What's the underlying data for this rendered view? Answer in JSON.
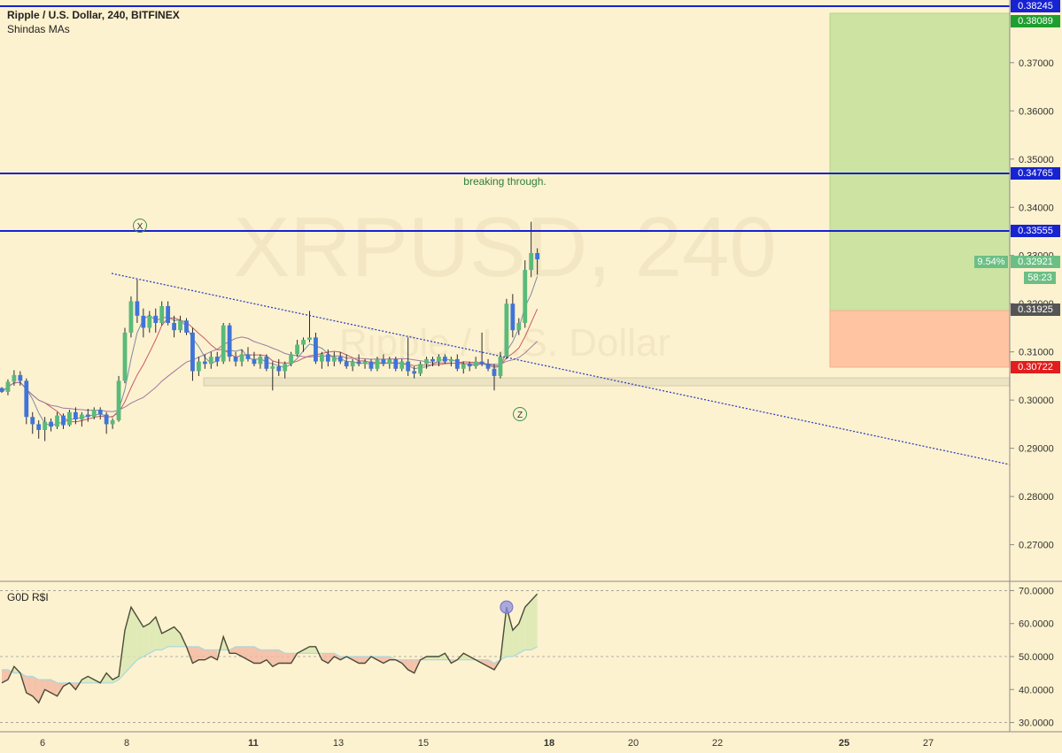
{
  "header": {
    "symbol": "Ripple / U.S. Dollar, 240, BITFINEX",
    "indicator": "Shindas MAs"
  },
  "watermark": {
    "line1": "XRPUSD, 240",
    "line2": "Ripple / U.S. Dollar"
  },
  "rsi_panel": {
    "title": "G0D R$I"
  },
  "annotations": {
    "breaking": "breaking through.",
    "wave_x": "X",
    "wave_z": "Z"
  },
  "price_tags": {
    "top_line": "0.38245",
    "target": "0.38089",
    "mid_line": "0.34765",
    "low_line": "0.33555",
    "percent": "9.54%",
    "current": "0.32921",
    "countdown": "58:23",
    "entry": "0.31925",
    "stop": "0.30722"
  },
  "colors": {
    "bull": "#5aba7a",
    "bear": "#3f74d9",
    "hline": "#1722d1",
    "profit": "#cde3a2",
    "loss": "#ffc4a2",
    "rsi_line": "#4a4a3a",
    "rsi_signal": "#a8d8e0"
  },
  "chart_data": [
    {
      "type": "candlestick",
      "title": "Ripple / U.S. Dollar, 240, BITFINEX",
      "y_ticks": [
        0.27,
        0.28,
        0.29,
        0.3,
        0.31,
        0.32,
        0.33,
        0.34,
        0.35,
        0.36,
        0.37
      ],
      "x_ticks": [
        "6",
        "8",
        "11",
        "13",
        "15",
        "18",
        "20",
        "22",
        "25",
        "27"
      ],
      "ylim": [
        0.2635,
        0.383
      ],
      "horizontal_lines": [
        0.38245,
        0.34765,
        0.33555
      ],
      "position": {
        "entry": 0.31925,
        "target": 0.38089,
        "stop": 0.30722
      },
      "ohlc": [
        [
          0.3025,
          0.3027,
          0.3015,
          0.3017
        ],
        [
          0.3017,
          0.3043,
          0.301,
          0.3038
        ],
        [
          0.3038,
          0.3062,
          0.303,
          0.3052
        ],
        [
          0.3052,
          0.306,
          0.303,
          0.304
        ],
        [
          0.304,
          0.3045,
          0.295,
          0.2965
        ],
        [
          0.2965,
          0.2975,
          0.293,
          0.295
        ],
        [
          0.295,
          0.2958,
          0.292,
          0.2938
        ],
        [
          0.2938,
          0.2965,
          0.2915,
          0.2955
        ],
        [
          0.2955,
          0.2962,
          0.2935,
          0.2945
        ],
        [
          0.2945,
          0.2975,
          0.294,
          0.2968
        ],
        [
          0.2968,
          0.2972,
          0.294,
          0.2948
        ],
        [
          0.2948,
          0.298,
          0.2945,
          0.2975
        ],
        [
          0.2975,
          0.2985,
          0.295,
          0.296
        ],
        [
          0.296,
          0.2975,
          0.2945,
          0.297
        ],
        [
          0.297,
          0.2982,
          0.2955,
          0.2965
        ],
        [
          0.2965,
          0.2985,
          0.296,
          0.298
        ],
        [
          0.298,
          0.2985,
          0.296,
          0.297
        ],
        [
          0.297,
          0.2975,
          0.293,
          0.295
        ],
        [
          0.295,
          0.2962,
          0.294,
          0.2958
        ],
        [
          0.2958,
          0.305,
          0.2955,
          0.304
        ],
        [
          0.304,
          0.315,
          0.3035,
          0.314
        ],
        [
          0.314,
          0.3215,
          0.313,
          0.3205
        ],
        [
          0.3205,
          0.325,
          0.316,
          0.3175
        ],
        [
          0.3175,
          0.319,
          0.313,
          0.315
        ],
        [
          0.315,
          0.3185,
          0.314,
          0.3175
        ],
        [
          0.3175,
          0.319,
          0.314,
          0.316
        ],
        [
          0.316,
          0.3205,
          0.3155,
          0.3195
        ],
        [
          0.3195,
          0.3205,
          0.3155,
          0.316
        ],
        [
          0.316,
          0.3175,
          0.313,
          0.3145
        ],
        [
          0.3145,
          0.3175,
          0.314,
          0.3165
        ],
        [
          0.3165,
          0.317,
          0.3135,
          0.314
        ],
        [
          0.314,
          0.315,
          0.304,
          0.306
        ],
        [
          0.306,
          0.309,
          0.305,
          0.308
        ],
        [
          0.308,
          0.3095,
          0.3065,
          0.3075
        ],
        [
          0.3075,
          0.31,
          0.3065,
          0.309
        ],
        [
          0.309,
          0.31,
          0.307,
          0.308
        ],
        [
          0.308,
          0.316,
          0.3075,
          0.3155
        ],
        [
          0.3155,
          0.316,
          0.308,
          0.309
        ],
        [
          0.309,
          0.31,
          0.307,
          0.308
        ],
        [
          0.308,
          0.3105,
          0.307,
          0.3095
        ],
        [
          0.3095,
          0.311,
          0.308,
          0.3085
        ],
        [
          0.3085,
          0.31,
          0.307,
          0.3075
        ],
        [
          0.3075,
          0.3095,
          0.3065,
          0.309
        ],
        [
          0.309,
          0.3095,
          0.306,
          0.3065
        ],
        [
          0.3065,
          0.308,
          0.302,
          0.307
        ],
        [
          0.307,
          0.3085,
          0.305,
          0.306
        ],
        [
          0.306,
          0.308,
          0.3045,
          0.3075
        ],
        [
          0.3075,
          0.31,
          0.307,
          0.3095
        ],
        [
          0.3095,
          0.3125,
          0.309,
          0.3115
        ],
        [
          0.3115,
          0.313,
          0.31,
          0.3125
        ],
        [
          0.3125,
          0.3185,
          0.312,
          0.313
        ],
        [
          0.313,
          0.314,
          0.3075,
          0.308
        ],
        [
          0.308,
          0.31,
          0.3065,
          0.3095
        ],
        [
          0.3095,
          0.3105,
          0.307,
          0.308
        ],
        [
          0.308,
          0.31,
          0.307,
          0.309
        ],
        [
          0.309,
          0.31,
          0.3075,
          0.308
        ],
        [
          0.308,
          0.3095,
          0.3065,
          0.307
        ],
        [
          0.307,
          0.3085,
          0.306,
          0.308
        ],
        [
          0.308,
          0.3095,
          0.307,
          0.3075
        ],
        [
          0.3075,
          0.3085,
          0.3065,
          0.308
        ],
        [
          0.308,
          0.3085,
          0.306,
          0.3065
        ],
        [
          0.3065,
          0.309,
          0.306,
          0.3085
        ],
        [
          0.3085,
          0.3095,
          0.307,
          0.3075
        ],
        [
          0.3075,
          0.309,
          0.3065,
          0.3085
        ],
        [
          0.3085,
          0.309,
          0.306,
          0.3065
        ],
        [
          0.3065,
          0.3085,
          0.306,
          0.308
        ],
        [
          0.308,
          0.313,
          0.305,
          0.306
        ],
        [
          0.306,
          0.307,
          0.3045,
          0.3055
        ],
        [
          0.3055,
          0.308,
          0.305,
          0.3075
        ],
        [
          0.3075,
          0.309,
          0.3065,
          0.3085
        ],
        [
          0.3085,
          0.309,
          0.307,
          0.308
        ],
        [
          0.308,
          0.3095,
          0.307,
          0.309
        ],
        [
          0.309,
          0.3095,
          0.3075,
          0.308
        ],
        [
          0.308,
          0.309,
          0.307,
          0.3085
        ],
        [
          0.3085,
          0.3095,
          0.306,
          0.3065
        ],
        [
          0.3065,
          0.308,
          0.3055,
          0.3075
        ],
        [
          0.3075,
          0.308,
          0.306,
          0.307
        ],
        [
          0.307,
          0.309,
          0.3065,
          0.308
        ],
        [
          0.308,
          0.314,
          0.307,
          0.3075
        ],
        [
          0.3075,
          0.3085,
          0.306,
          0.3065
        ],
        [
          0.3065,
          0.3075,
          0.302,
          0.305
        ],
        [
          0.305,
          0.31,
          0.3045,
          0.309
        ],
        [
          0.309,
          0.321,
          0.3085,
          0.32
        ],
        [
          0.32,
          0.322,
          0.313,
          0.3145
        ],
        [
          0.3145,
          0.317,
          0.3135,
          0.316
        ],
        [
          0.316,
          0.329,
          0.315,
          0.327
        ],
        [
          0.327,
          0.337,
          0.3255,
          0.3305
        ],
        [
          0.3305,
          0.3315,
          0.326,
          0.3292
        ]
      ]
    },
    {
      "type": "line",
      "title": "G0D R$I",
      "y_ticks": [
        30,
        40,
        50,
        60,
        70
      ],
      "ylim": [
        28,
        72
      ],
      "reference_lines": [
        70,
        50,
        30
      ],
      "series": [
        {
          "values": [
            42,
            43,
            47,
            45,
            39,
            38,
            36,
            40,
            39,
            38,
            41,
            42,
            40,
            43,
            44,
            43,
            42,
            45,
            43,
            44,
            58,
            65,
            62,
            59,
            60,
            62,
            57,
            58,
            59,
            57,
            53,
            48,
            49,
            49,
            50,
            49,
            56,
            51,
            51,
            50,
            49,
            48,
            48,
            49,
            47,
            48,
            48,
            48,
            51,
            52,
            53,
            53,
            49,
            48,
            50,
            49,
            50,
            49,
            48,
            48,
            50,
            49,
            48,
            49,
            49,
            48,
            46,
            45,
            49,
            50,
            50,
            50,
            51,
            48,
            49,
            51,
            50,
            49,
            48,
            47,
            46,
            49,
            65,
            58,
            60,
            65,
            67,
            69
          ]
        },
        {
          "values": [
            46,
            46,
            45,
            45,
            44,
            44,
            43,
            43,
            43,
            42,
            42,
            42,
            42,
            42,
            42,
            42,
            42,
            42,
            42,
            43,
            45,
            47,
            49,
            50,
            51,
            52,
            52,
            53,
            53,
            53,
            53,
            53,
            53,
            52,
            52,
            52,
            52,
            52,
            53,
            53,
            53,
            53,
            52,
            52,
            52,
            52,
            51,
            51,
            51,
            51,
            51,
            51,
            51,
            51,
            51,
            50,
            50,
            50,
            50,
            50,
            50,
            50,
            50,
            50,
            49,
            49,
            49,
            49,
            49,
            49,
            49,
            49,
            49,
            49,
            49,
            49,
            49,
            49,
            49,
            49,
            48,
            49,
            50,
            50,
            51,
            52,
            52,
            53
          ]
        }
      ]
    }
  ]
}
